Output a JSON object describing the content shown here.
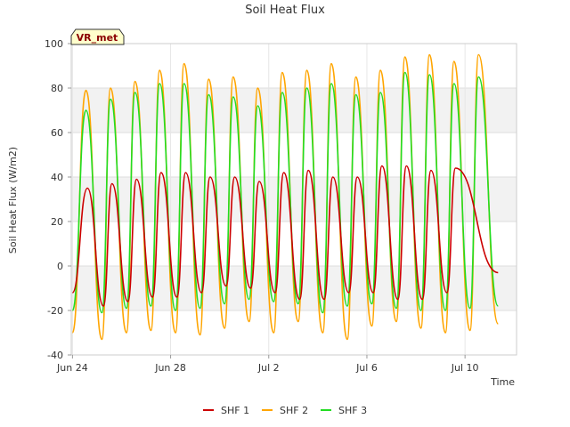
{
  "chart_data": {
    "type": "line",
    "title": "Soil Heat Flux",
    "xlabel": "Time",
    "ylabel": "Soil Heat Flux (W/m2)",
    "badge": "VR_met",
    "xlim": [
      "Jun 24",
      "Jul 12"
    ],
    "ylim": [
      -40,
      100
    ],
    "y_ticks": [
      -40,
      -20,
      0,
      20,
      40,
      60,
      80,
      100
    ],
    "x_ticks": [
      {
        "label": "Jun 24",
        "day": 0
      },
      {
        "label": "Jun 28",
        "day": 4
      },
      {
        "label": "Jul 2",
        "day": 8
      },
      {
        "label": "Jul 6",
        "day": 12
      },
      {
        "label": "Jul 10",
        "day": 16
      }
    ],
    "grid": "horizontal bands",
    "legend_position": "bottom",
    "series": [
      {
        "name": "SHF 1",
        "color": "#cc0000",
        "start": -12,
        "end": -3,
        "daily_max": [
          35,
          37,
          39,
          42,
          42,
          40,
          40,
          38,
          42,
          43,
          40,
          40,
          45,
          45,
          43,
          44
        ],
        "daily_min": [
          -20,
          -18,
          -16,
          -14,
          -14,
          -12,
          -9,
          -10,
          -12,
          -15,
          -15,
          -12,
          -12,
          -15,
          -15,
          -12
        ]
      },
      {
        "name": "SHF 2",
        "color": "#ffa500",
        "start": -30,
        "end": -26,
        "daily_max": [
          79,
          80,
          83,
          88,
          91,
          84,
          85,
          80,
          87,
          88,
          91,
          85,
          88,
          94,
          95,
          92,
          95
        ],
        "daily_min": [
          -34,
          -33,
          -30,
          -29,
          -30,
          -31,
          -28,
          -25,
          -30,
          -25,
          -30,
          -33,
          -27,
          -25,
          -28,
          -30,
          -29
        ]
      },
      {
        "name": "SHF 3",
        "color": "#22dd22",
        "start": -20,
        "end": -18,
        "daily_max": [
          70,
          75,
          78,
          82,
          82,
          77,
          76,
          72,
          78,
          80,
          82,
          77,
          78,
          87,
          86,
          82,
          85
        ],
        "daily_min": [
          -21,
          -21,
          -19,
          -18,
          -20,
          -19,
          -17,
          -15,
          -16,
          -17,
          -21,
          -18,
          -17,
          -19,
          -20,
          -20,
          -19
        ]
      }
    ]
  }
}
